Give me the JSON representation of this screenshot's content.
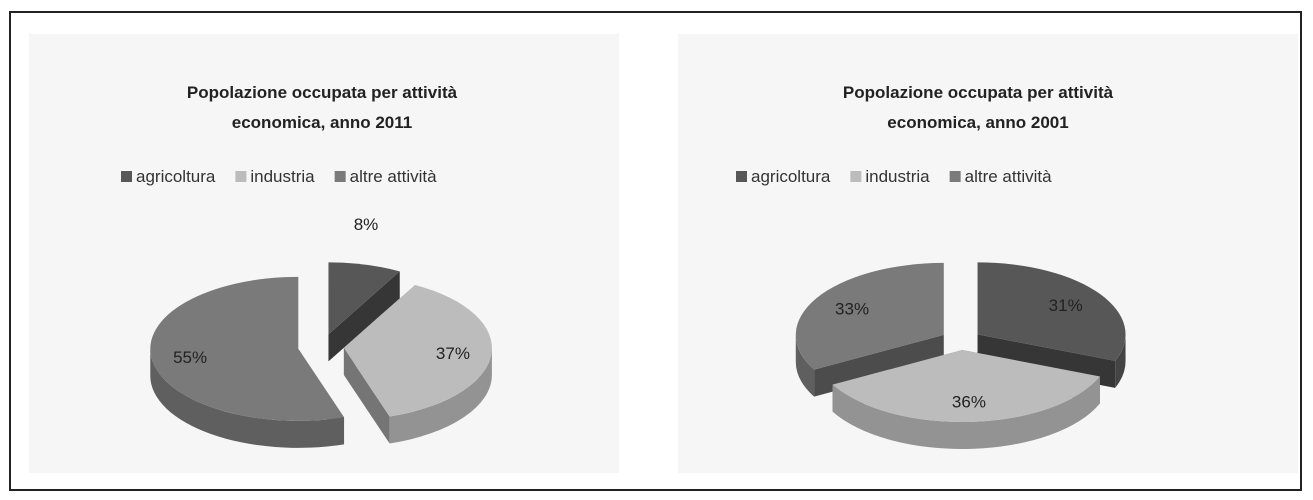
{
  "chart_data": [
    {
      "type": "pie",
      "title": "Popolazione occupata per attività economica, anno 2011",
      "title_lines": [
        "Popolazione occupata per attività",
        "economica, anno 2011"
      ],
      "legend": [
        "agricoltura",
        "industria",
        "altre attività"
      ],
      "legend_placement": "top",
      "categories": [
        "agricoltura",
        "industria",
        "altre attività"
      ],
      "values": [
        8,
        37,
        55
      ],
      "labels": [
        "8%",
        "37%",
        "55%"
      ],
      "colors": [
        "#575757",
        "#bcbcbc",
        "#7a7a7a"
      ],
      "style": "3d-exploded"
    },
    {
      "type": "pie",
      "title": "Popolazione occupata per attività economica, anno 2001",
      "title_lines": [
        "Popolazione occupata per attività",
        "economica, anno 2001"
      ],
      "legend": [
        "agricoltura",
        "industria",
        "altre attività"
      ],
      "legend_placement": "top",
      "categories": [
        "agricoltura",
        "industria",
        "altre attività"
      ],
      "values": [
        31,
        36,
        33
      ],
      "labels": [
        "31%",
        "36%",
        "33%"
      ],
      "colors": [
        "#575757",
        "#bcbcbc",
        "#7a7a7a"
      ],
      "style": "3d-exploded"
    }
  ]
}
